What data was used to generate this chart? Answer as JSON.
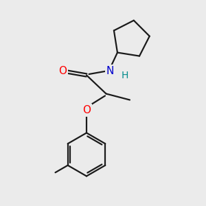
{
  "bg_color": "#ebebeb",
  "bond_color": "#1a1a1a",
  "bond_width": 1.6,
  "atom_colors": {
    "O": "#ff0000",
    "N": "#0000cd",
    "H": "#008b8b",
    "C": "#1a1a1a"
  },
  "font_size_atom": 11,
  "font_size_h": 10
}
